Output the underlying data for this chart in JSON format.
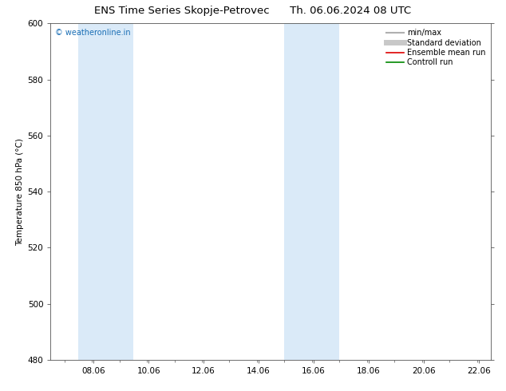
{
  "title_left": "ENS Time Series Skopje-Petrovec",
  "title_right": "Th. 06.06.2024 08 UTC",
  "ylabel": "Temperature 850 hPa (°C)",
  "watermark": "© weatheronline.in",
  "xlim": [
    6.5,
    22.5
  ],
  "ylim": [
    480,
    600
  ],
  "yticks": [
    480,
    500,
    520,
    540,
    560,
    580,
    600
  ],
  "xticks": [
    8.06,
    10.06,
    12.06,
    14.06,
    16.06,
    18.06,
    20.06,
    22.06
  ],
  "xtick_labels": [
    "08.06",
    "10.06",
    "12.06",
    "14.06",
    "16.06",
    "18.06",
    "20.06",
    "22.06"
  ],
  "shaded_bands": [
    {
      "xmin": 7.5,
      "xmax": 9.5
    },
    {
      "xmin": 15.0,
      "xmax": 17.0
    }
  ],
  "shade_color": "#daeaf8",
  "background_color": "#ffffff",
  "legend_entries": [
    {
      "label": "min/max",
      "color": "#b0b0b0",
      "lw": 1.5
    },
    {
      "label": "Standard deviation",
      "color": "#c8c8c8",
      "lw": 5
    },
    {
      "label": "Ensemble mean run",
      "color": "#dd0000",
      "lw": 1.2
    },
    {
      "label": "Controll run",
      "color": "#008800",
      "lw": 1.2
    }
  ],
  "title_fontsize": 9.5,
  "tick_fontsize": 7.5,
  "ylabel_fontsize": 7.5,
  "legend_fontsize": 7,
  "watermark_color": "#1a6eb5",
  "watermark_fontsize": 7,
  "spine_color": "#555555"
}
